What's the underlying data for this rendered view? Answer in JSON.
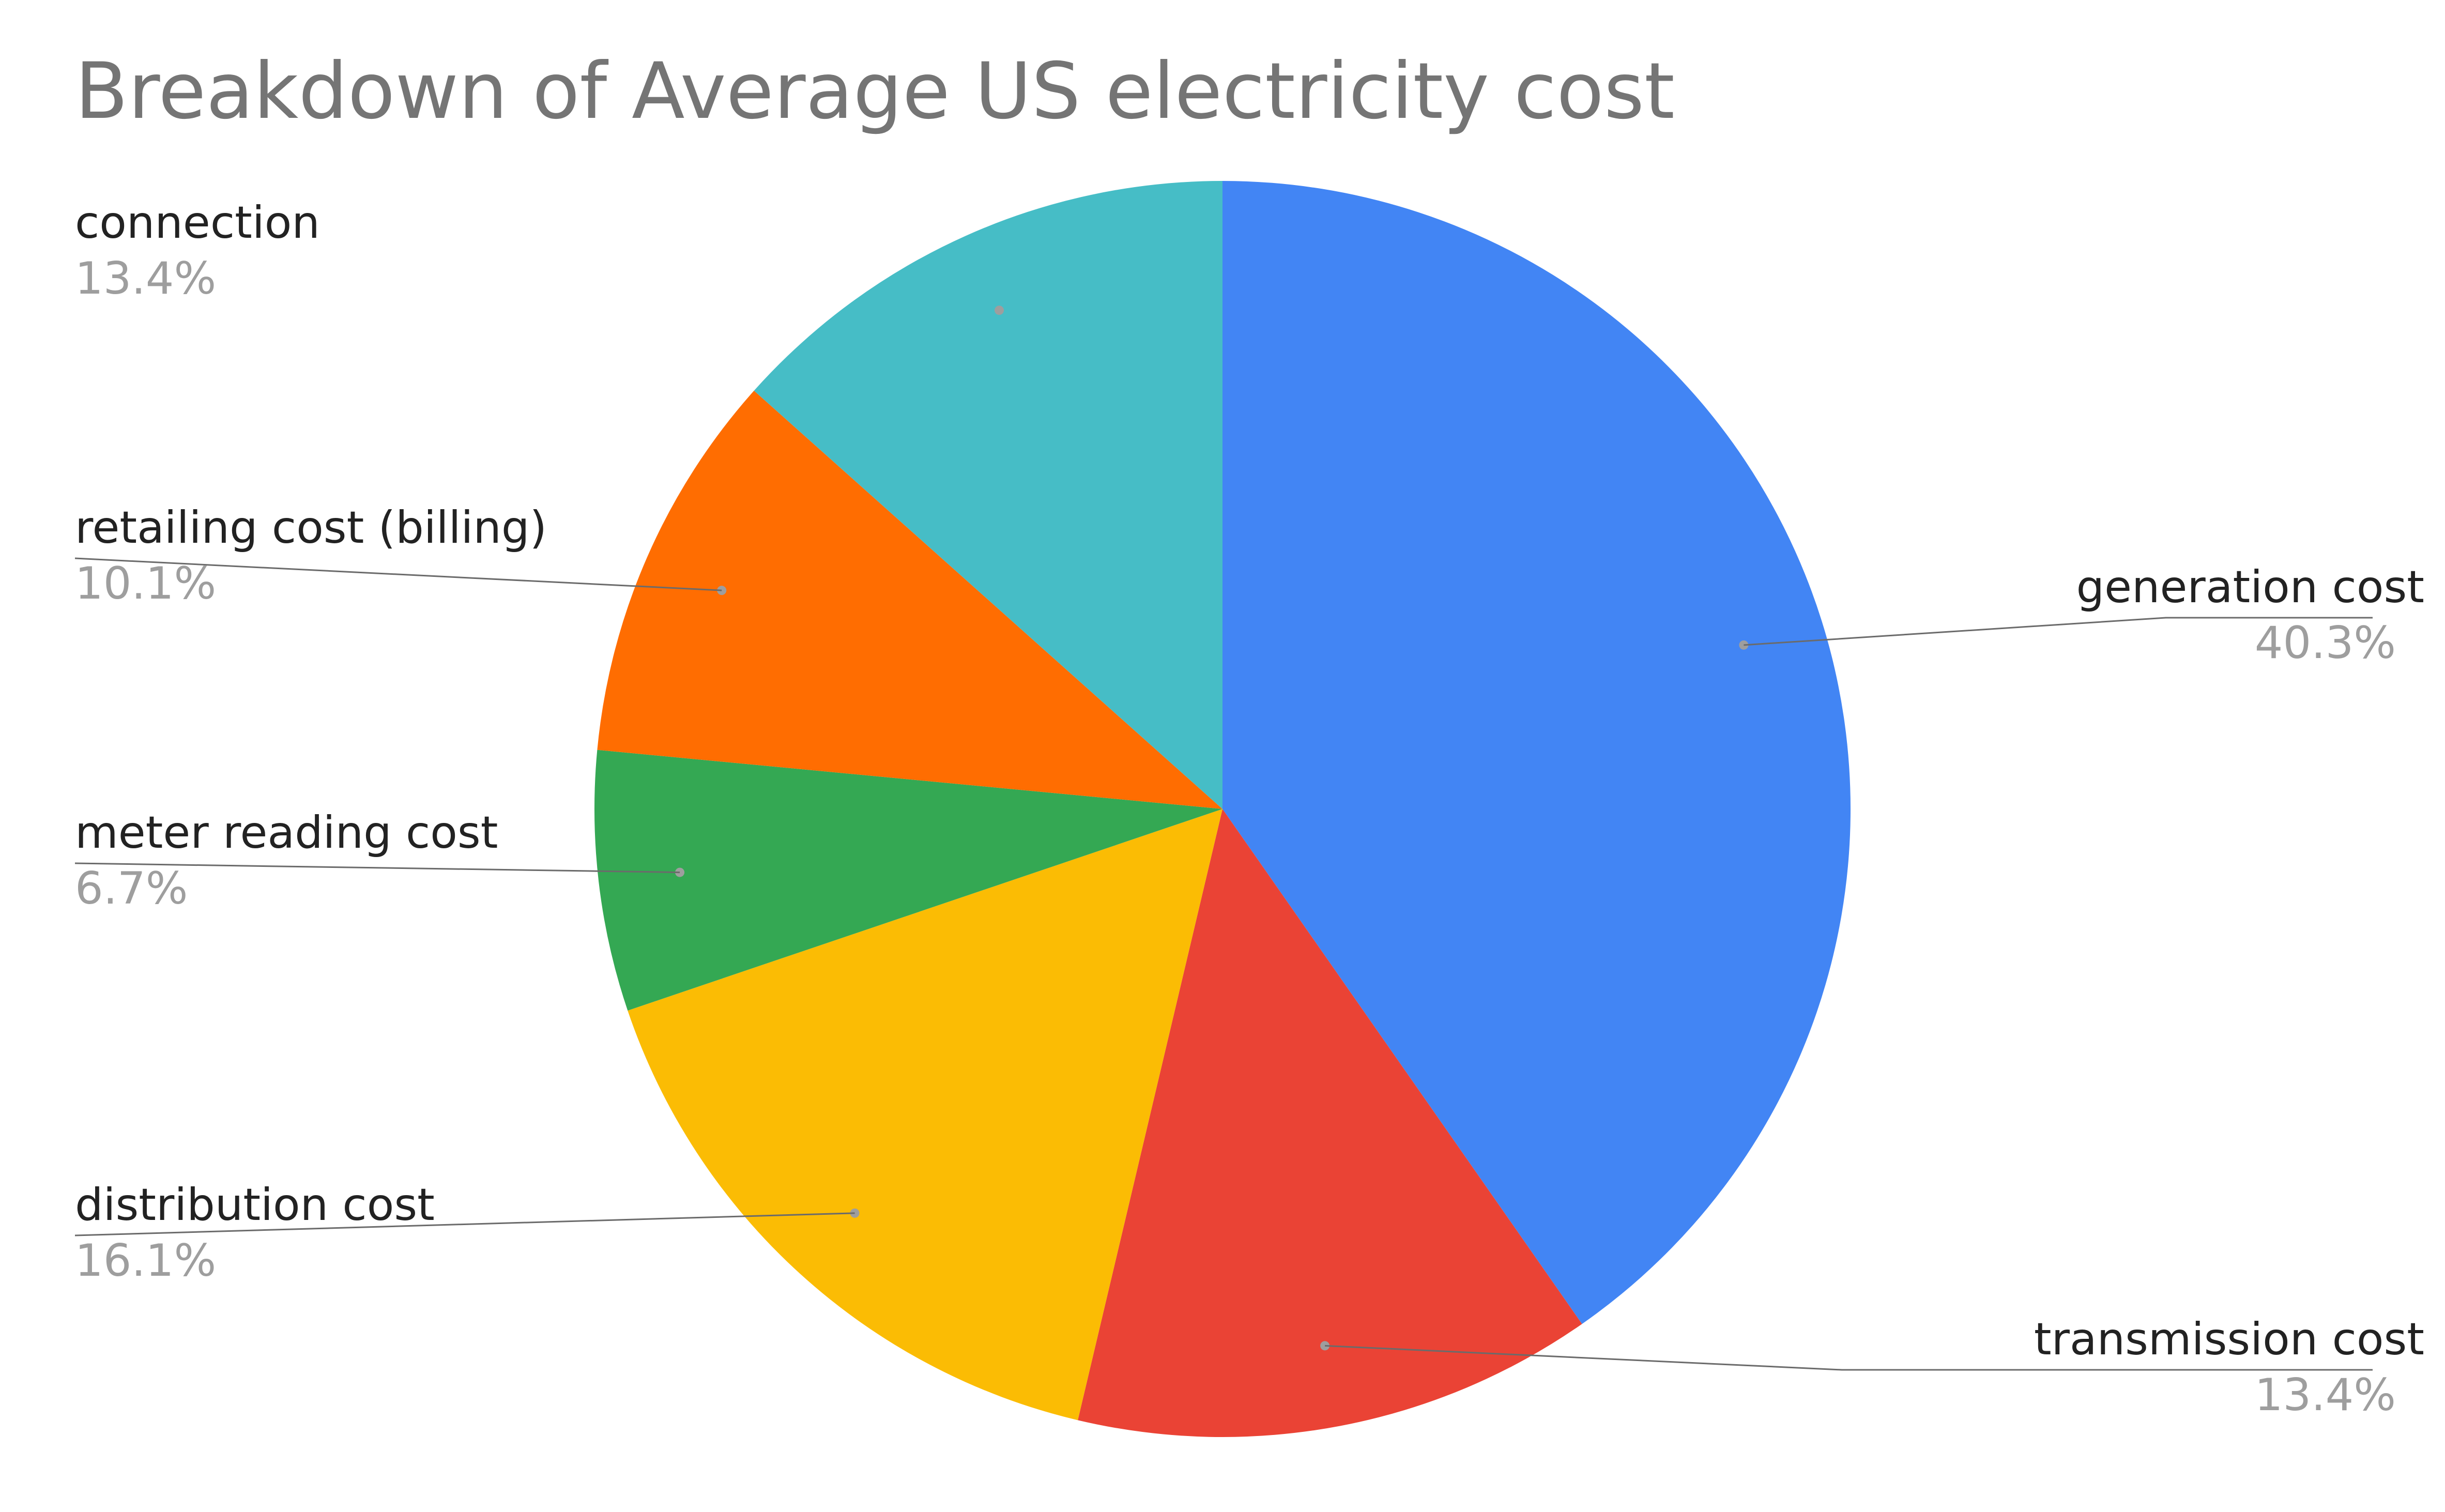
{
  "chart_data": {
    "type": "pie",
    "title": "Breakdown of Average US electricity cost",
    "start_angle_deg": 0,
    "direction": "clockwise",
    "slices": [
      {
        "name": "generation cost",
        "value": 40.3,
        "label": "40.3%",
        "color": "#4285F4",
        "label_side": "right"
      },
      {
        "name": "transmission cost",
        "value": 13.4,
        "label": "13.4%",
        "color": "#EA4335",
        "label_side": "right"
      },
      {
        "name": "distribution cost",
        "value": 16.1,
        "label": "16.1%",
        "color": "#FBBC04",
        "label_side": "left"
      },
      {
        "name": "meter reading cost",
        "value": 6.7,
        "label": "6.7%",
        "color": "#34A853",
        "label_side": "left"
      },
      {
        "name": "retailing cost (billing)",
        "value": 10.1,
        "label": "10.1%",
        "color": "#FF6D01",
        "label_side": "left"
      },
      {
        "name": "connection",
        "value": 13.4,
        "label": "13.4%",
        "color": "#46BDC6",
        "label_side": "left"
      }
    ]
  }
}
